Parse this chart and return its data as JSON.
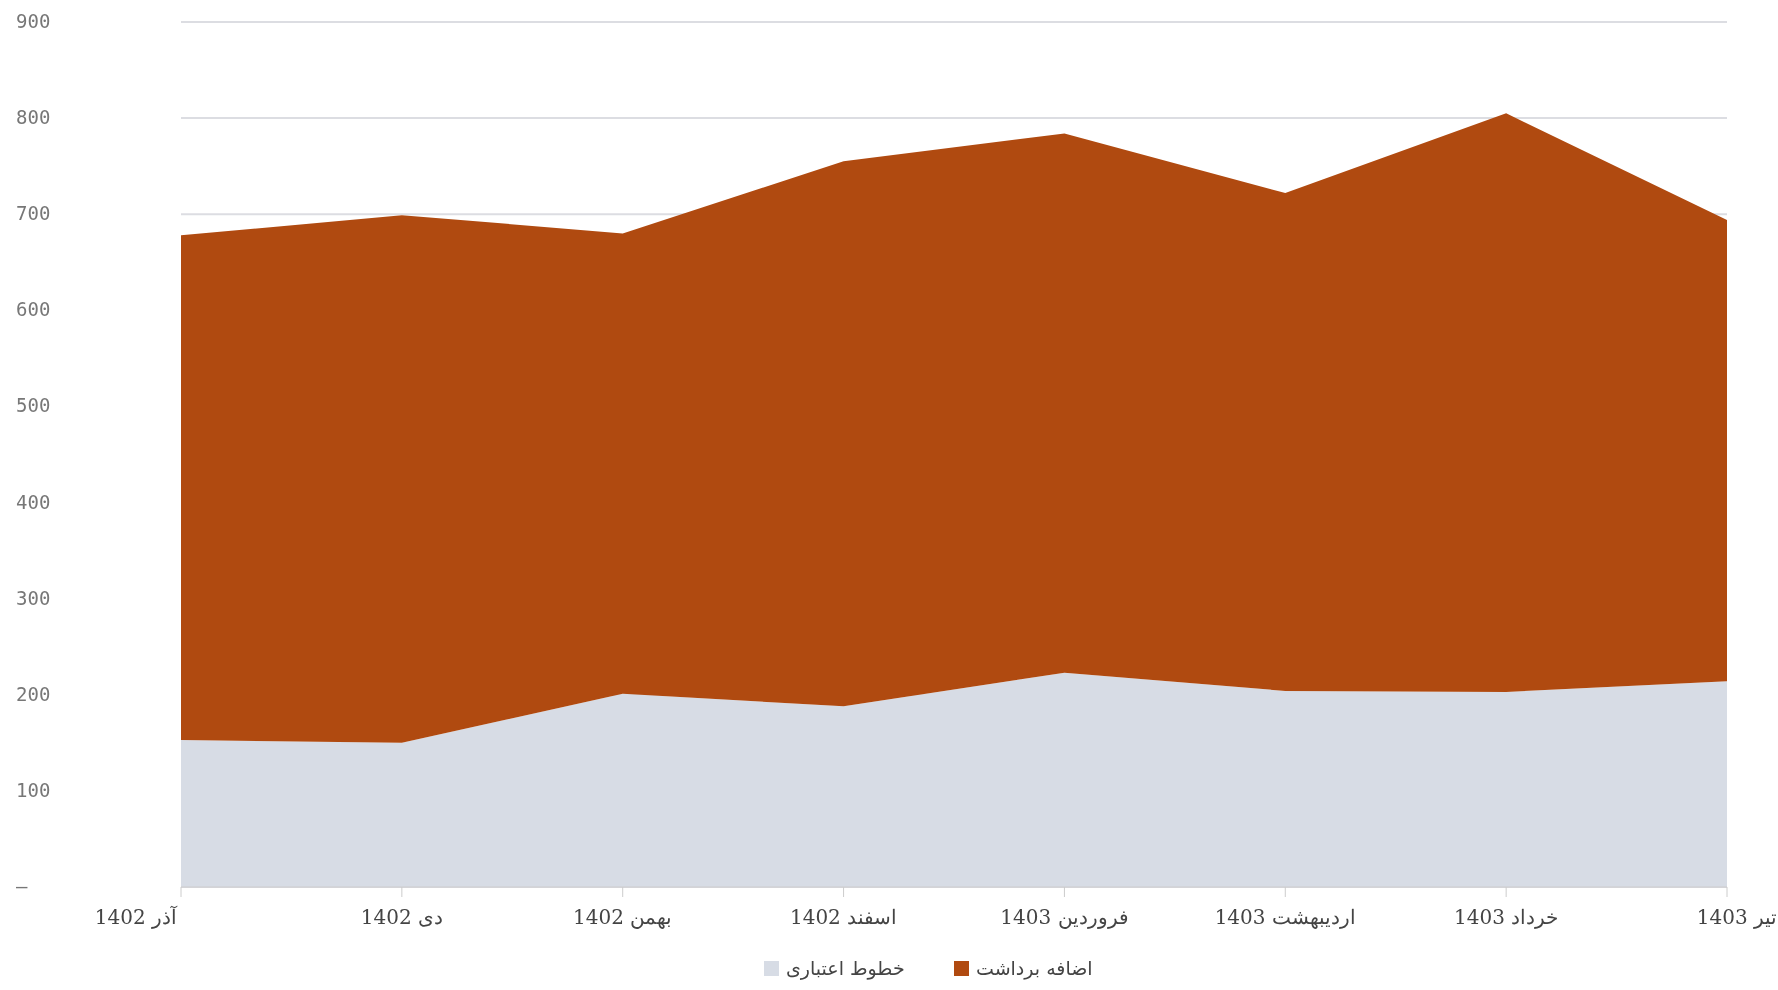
{
  "chart_data": {
    "type": "area",
    "stacked": true,
    "categories": [
      "آذر 1402",
      "دی 1402",
      "بهمن 1402",
      "اسفند 1402",
      "فروردین 1403",
      "اردیبهشت 1403",
      "خرداد 1403",
      "تیر 1403"
    ],
    "series": [
      {
        "name": "خطوط اعتباری",
        "color": "#d7dce5",
        "values": [
          153,
          150,
          201,
          188,
          223,
          204,
          203,
          214
        ]
      },
      {
        "name": "اضافه برداشت",
        "color": "#b04a10",
        "values": [
          525,
          549,
          479,
          567,
          561,
          518,
          602,
          480
        ]
      }
    ],
    "ylim": [
      0,
      900
    ],
    "yticks": [
      {
        "value": 0,
        "label": "–"
      },
      100,
      200,
      300,
      400,
      500,
      600,
      700,
      800,
      900
    ],
    "grid": "y",
    "legend": "bottom"
  }
}
